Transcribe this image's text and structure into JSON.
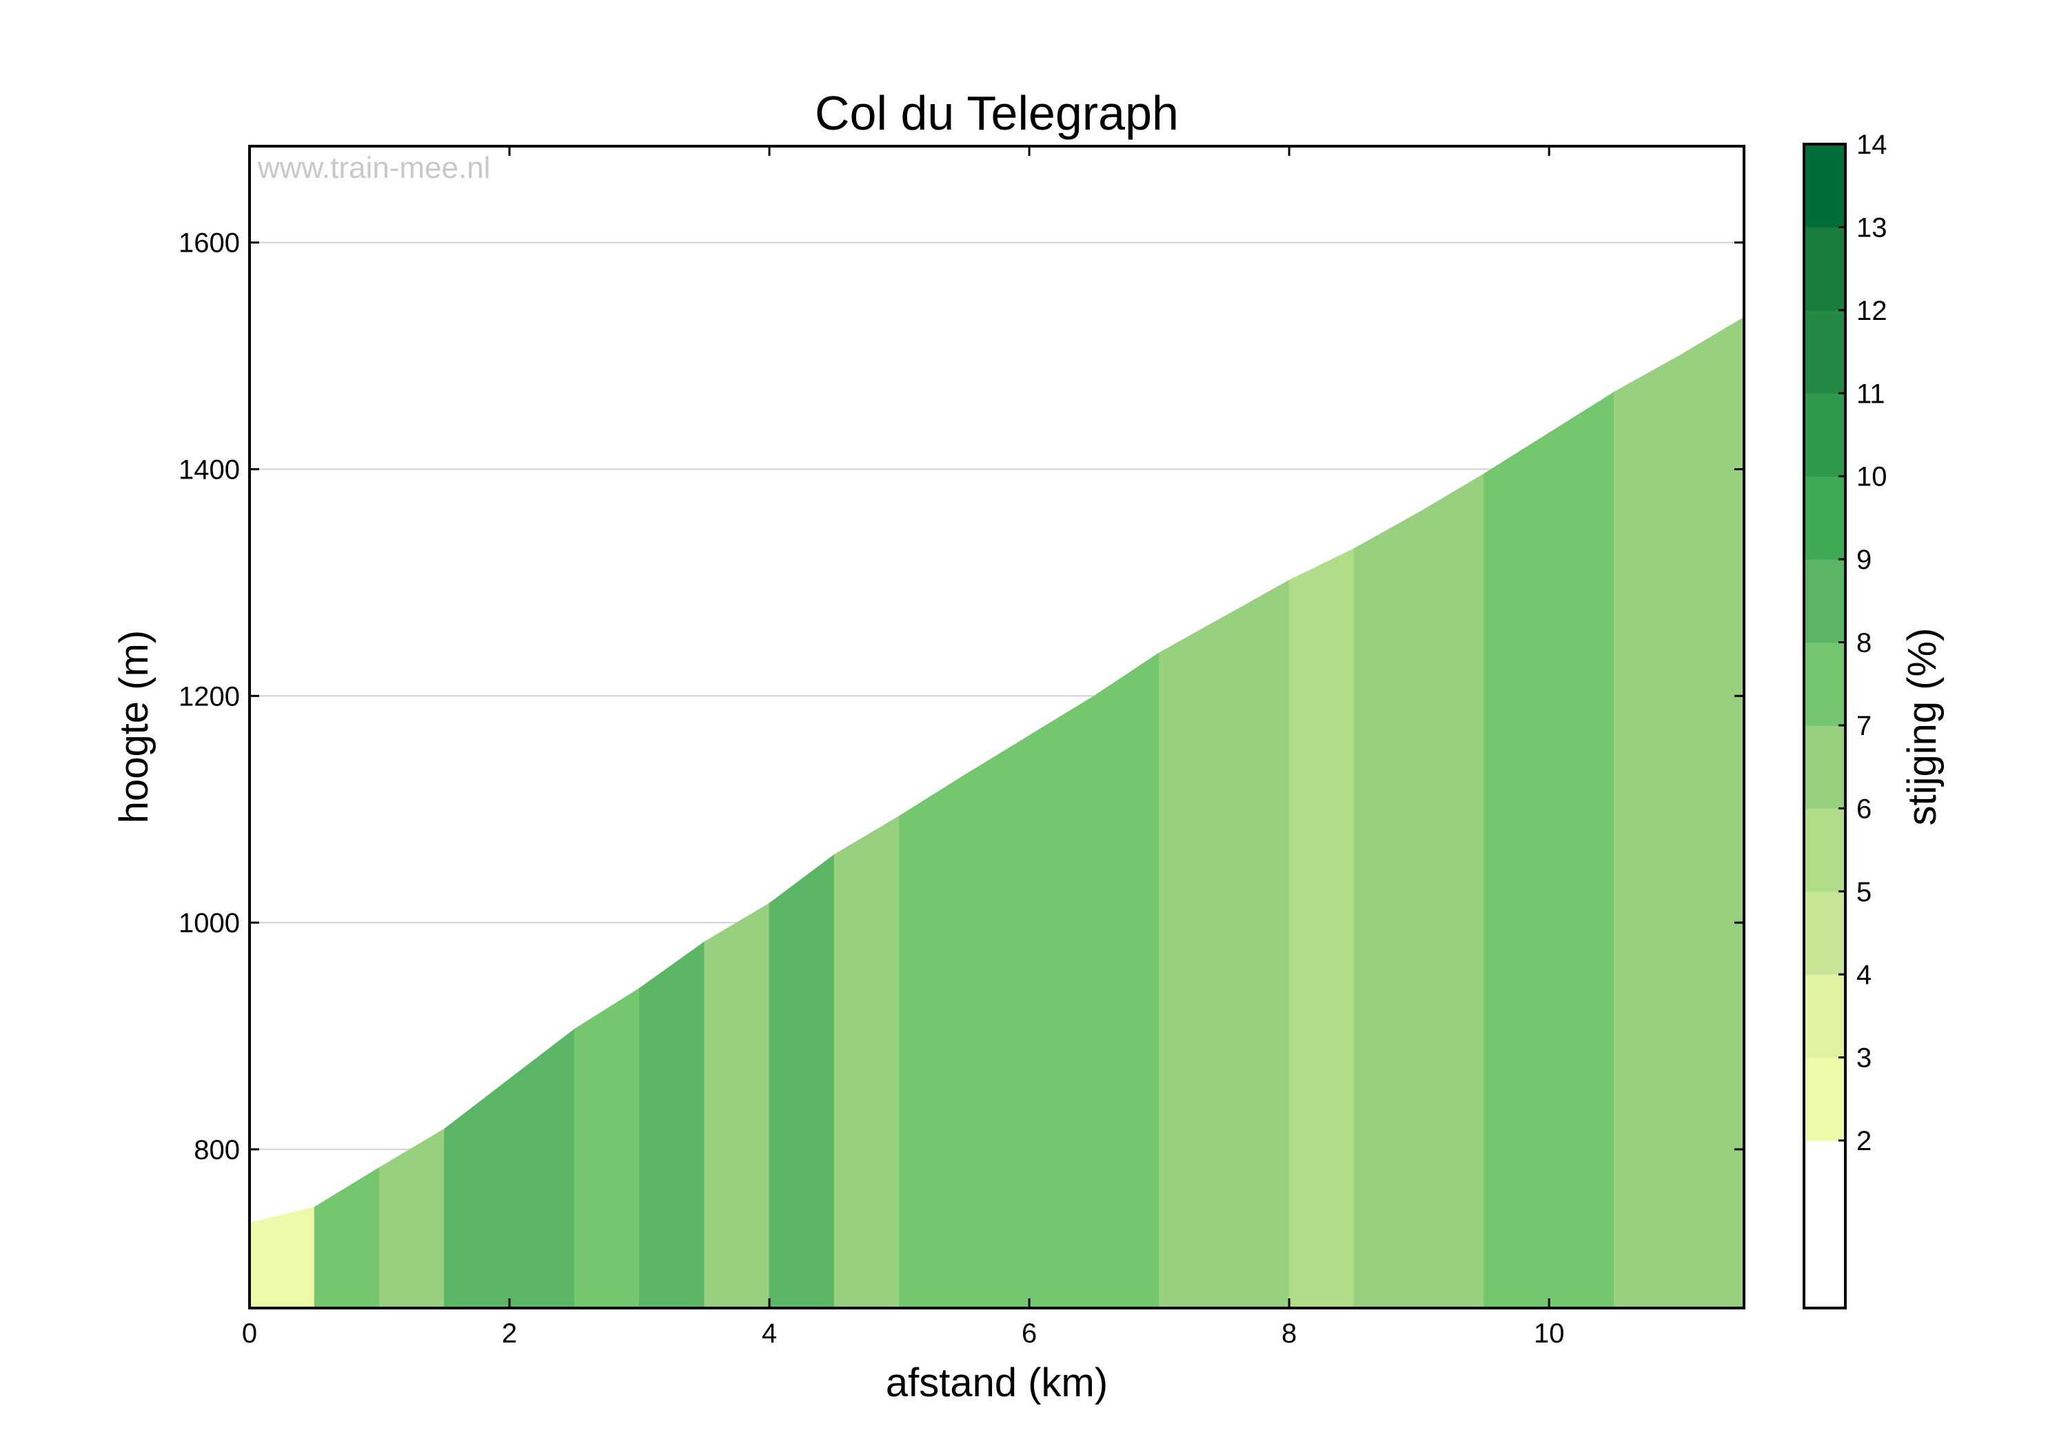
{
  "chart_data": {
    "type": "area",
    "title": "Col du Telegraph",
    "xlabel": "afstand (km)",
    "ylabel": "hoogte (m)",
    "colorbar_label": "stijging (%)",
    "watermark": "www.train-mee.nl",
    "xlim": [
      0,
      11.5
    ],
    "ylim": [
      660,
      1685
    ],
    "xticks": [
      0,
      2,
      4,
      6,
      8,
      10
    ],
    "yticks": [
      800,
      1000,
      1200,
      1400,
      1600
    ],
    "grid": "horizontal",
    "x": [
      0,
      0.5,
      1.0,
      1.5,
      2.0,
      2.5,
      3.0,
      3.5,
      4.0,
      4.5,
      5.0,
      5.5,
      6.0,
      6.5,
      7.0,
      7.5,
      8.0,
      8.5,
      9.0,
      9.5,
      10.0,
      10.5,
      11.0,
      11.5
    ],
    "elevation": [
      735,
      749,
      784,
      818,
      862,
      906,
      942,
      983,
      1017,
      1060,
      1094,
      1130,
      1165,
      1200,
      1238,
      1270,
      1302,
      1330,
      1362,
      1396,
      1432,
      1468,
      1500,
      1534
    ],
    "gradient_pct": [
      2.8,
      7,
      6.8,
      8.8,
      8.8,
      7.2,
      8.2,
      6.8,
      8.6,
      6.8,
      7.2,
      7,
      7,
      7.6,
      6.4,
      6.4,
      5.6,
      6.4,
      6.8,
      7.2,
      7.2,
      6.4,
      6.8
    ],
    "colorbar": {
      "ticks": [
        2,
        3,
        4,
        5,
        6,
        7,
        8,
        9,
        10,
        11,
        12,
        13,
        14
      ],
      "bands": [
        {
          "from": 2,
          "to": 3,
          "color": "#eef9a9"
        },
        {
          "from": 3,
          "to": 4,
          "color": "#e1f2a0"
        },
        {
          "from": 4,
          "to": 5,
          "color": "#c7e696"
        },
        {
          "from": 5,
          "to": 6,
          "color": "#b1dd88"
        },
        {
          "from": 6,
          "to": 7,
          "color": "#97d07e"
        },
        {
          "from": 7,
          "to": 8,
          "color": "#74c66f"
        },
        {
          "from": 8,
          "to": 9,
          "color": "#5ab664"
        },
        {
          "from": 9,
          "to": 10,
          "color": "#3eaa53"
        },
        {
          "from": 10,
          "to": 11,
          "color": "#2f9a4c"
        },
        {
          "from": 11,
          "to": 12,
          "color": "#248944"
        },
        {
          "from": 12,
          "to": 13,
          "color": "#1a7e3f"
        },
        {
          "from": 13,
          "to": 14,
          "color": "#006e37"
        }
      ],
      "below_color": "#ffffff"
    }
  }
}
